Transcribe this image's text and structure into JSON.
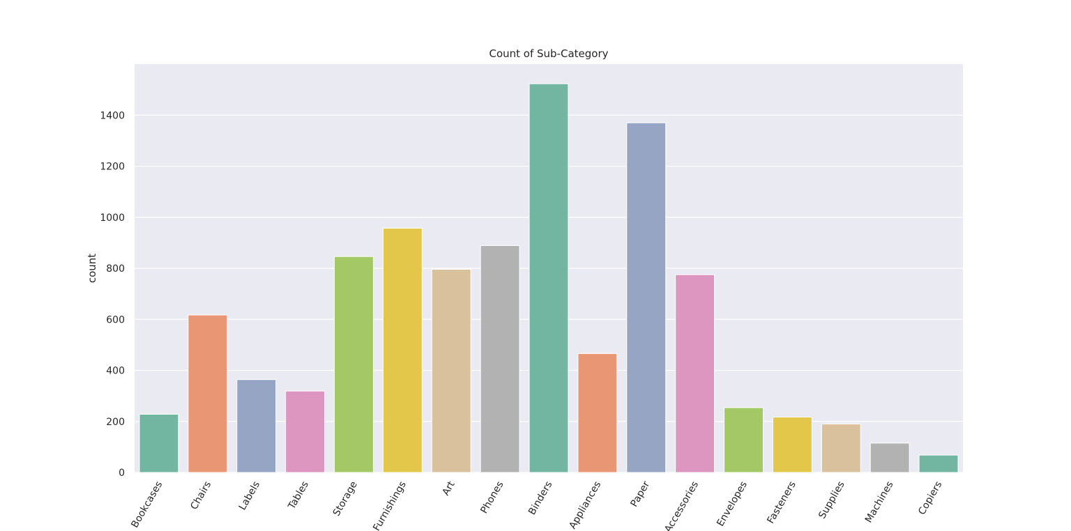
{
  "chart_data": {
    "type": "bar",
    "title": "Count of Sub-Category",
    "xlabel": "",
    "ylabel": "count",
    "ylim": [
      0,
      1600
    ],
    "yticks": [
      0,
      200,
      400,
      600,
      800,
      1000,
      1200,
      1400
    ],
    "grid": true,
    "categories": [
      "Bookcases",
      "Chairs",
      "Labels",
      "Tables",
      "Storage",
      "Furnishings",
      "Art",
      "Phones",
      "Binders",
      "Appliances",
      "Paper",
      "Accessories",
      "Envelopes",
      "Fasteners",
      "Supplies",
      "Machines",
      "Copiers"
    ],
    "values": [
      228,
      617,
      364,
      319,
      846,
      957,
      796,
      889,
      1523,
      466,
      1370,
      775,
      254,
      217,
      190,
      115,
      68
    ],
    "colors": [
      "#72b5a0",
      "#e99675",
      "#95a5c3",
      "#dc96c0",
      "#a3c865",
      "#e3c74a",
      "#d9c19e",
      "#b2b2b2",
      "#72b5a0",
      "#e99675",
      "#95a5c3",
      "#dc96c0",
      "#a3c865",
      "#e3c74a",
      "#d9c19e",
      "#b2b2b2",
      "#72b5a0"
    ],
    "background": "#eaeaf2",
    "grid_color": "#ffffff",
    "text_color": "#262626"
  }
}
